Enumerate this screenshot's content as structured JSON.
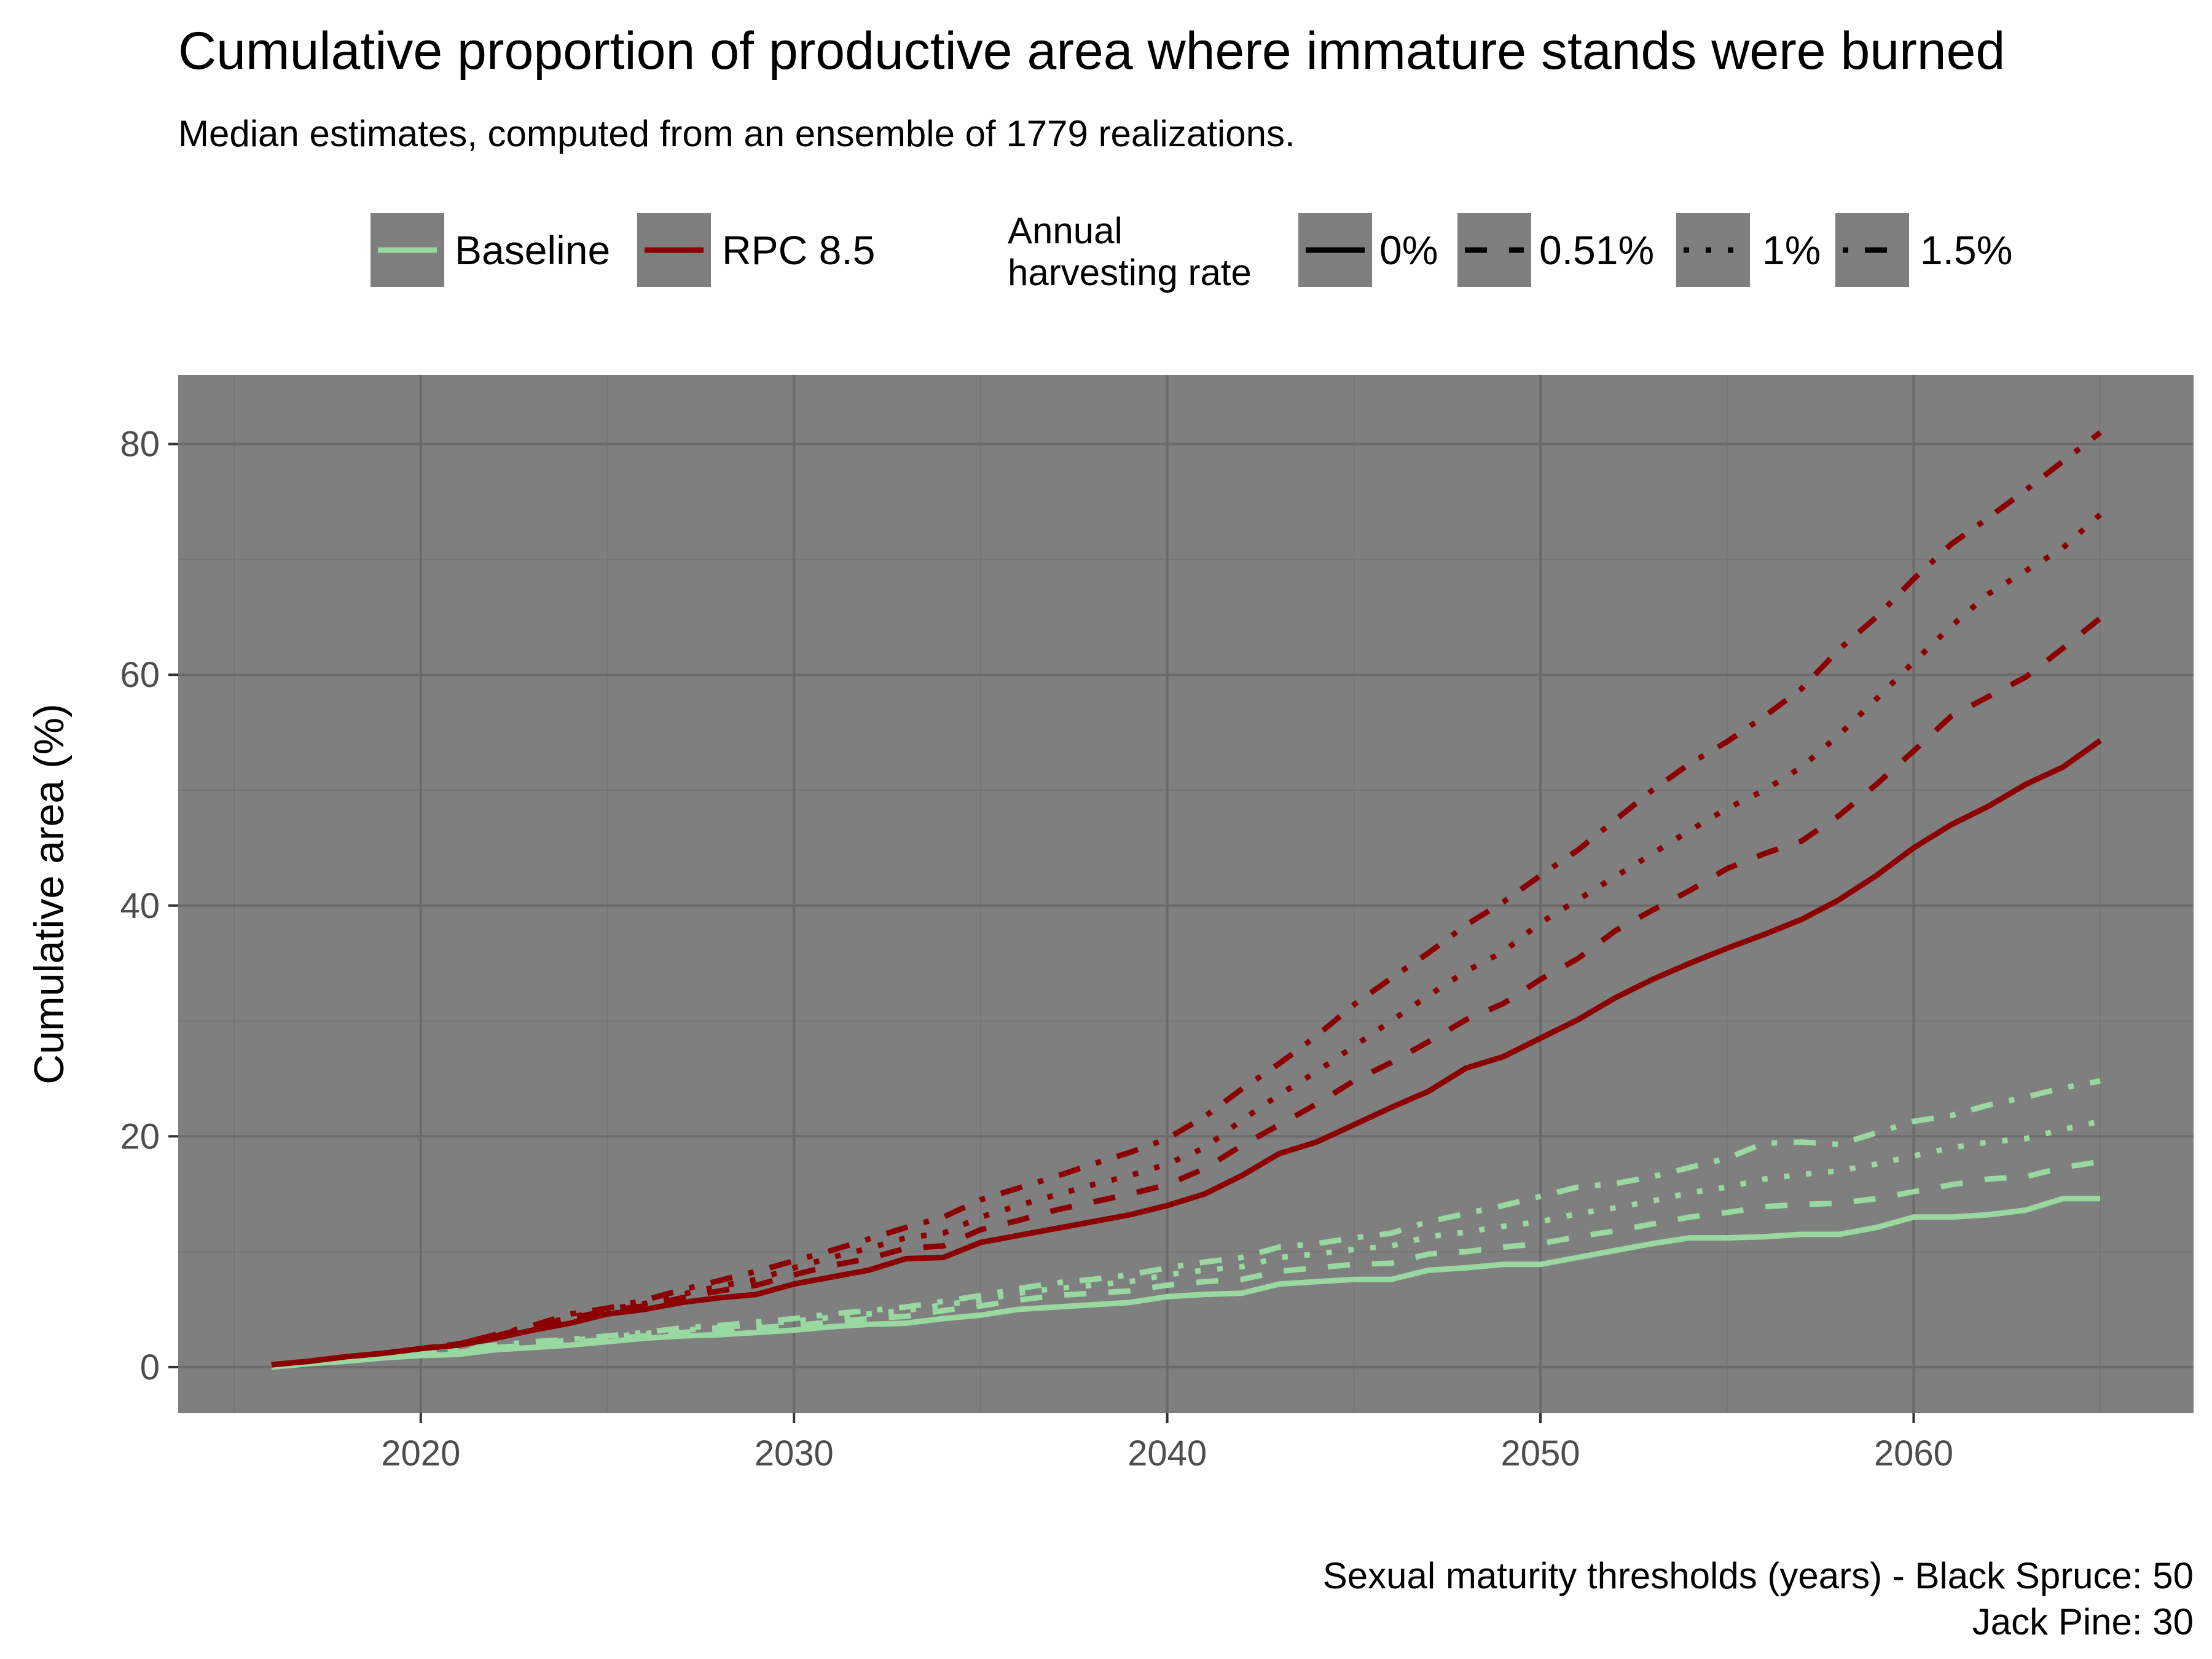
{
  "title": "Cumulative proportion of productive area where immature stands were burned",
  "subtitle": "Median estimates, computed from an ensemble of 1779 realizations.",
  "caption_line1": "Sexual maturity thresholds (years) - Black Spruce: 50",
  "caption_line2": "Jack Pine: 30",
  "legend": {
    "scenarios": [
      {
        "label": "Baseline",
        "color": "#99d8a0"
      },
      {
        "label": "RPC 8.5",
        "color": "#8b0000"
      }
    ],
    "rate_title_line1": "Annual",
    "rate_title_line2": "harvesting rate",
    "rates": [
      {
        "label": "0%",
        "dash": "solid"
      },
      {
        "label": "0.51%",
        "dash": "dashed"
      },
      {
        "label": "1%",
        "dash": "dotted"
      },
      {
        "label": "1.5%",
        "dash": "dotdash"
      }
    ]
  },
  "colors": {
    "panel_bg": "#7f7f7f",
    "grid_major": "#6b6b6b",
    "grid_minor": "#767676",
    "baseline": "#99d8a0",
    "rpc": "#8b0000",
    "legend_key_bg": "#7f7f7f"
  },
  "chart_data": {
    "type": "line",
    "title": "Cumulative proportion of productive area where immature stands were burned",
    "subtitle": "Median estimates, computed from an ensemble of 1779 realizations.",
    "xlabel": "",
    "ylabel": "Cumulative area (%)",
    "xlim": [
      2013.5,
      2067.5
    ],
    "ylim": [
      -4,
      86
    ],
    "x_ticks": [
      2020,
      2030,
      2040,
      2050,
      2060
    ],
    "y_ticks": [
      0,
      20,
      40,
      60,
      80
    ],
    "x_tick_labels": [
      "2020",
      "2030",
      "2040",
      "2050",
      "2060"
    ],
    "y_tick_labels": [
      "0",
      "20",
      "40",
      "60",
      "80"
    ],
    "grid": true,
    "legend_position": "top",
    "x": [
      2016,
      2017,
      2018,
      2019,
      2020,
      2021,
      2022,
      2023,
      2024,
      2025,
      2026,
      2027,
      2028,
      2029,
      2030,
      2031,
      2032,
      2033,
      2034,
      2035,
      2036,
      2037,
      2038,
      2039,
      2040,
      2041,
      2042,
      2043,
      2044,
      2045,
      2046,
      2047,
      2048,
      2049,
      2050,
      2051,
      2052,
      2053,
      2054,
      2055,
      2056,
      2057,
      2058,
      2059,
      2060,
      2061,
      2062,
      2063,
      2064,
      2065
    ],
    "series": [
      {
        "name": "RPC 8.5",
        "rate": "0%",
        "scenario": "RPC 8.5",
        "values": [
          0.2,
          0.5,
          0.9,
          1.2,
          1.6,
          1.9,
          2.5,
          3.2,
          3.8,
          4.6,
          5.0,
          5.6,
          6.0,
          6.3,
          7.2,
          7.8,
          8.4,
          9.4,
          9.5,
          10.8,
          11.4,
          12.0,
          12.6,
          13.2,
          14.0,
          15.0,
          16.6,
          18.5,
          19.5,
          21.0,
          22.5,
          23.9,
          25.9,
          26.9,
          28.5,
          30.1,
          32.0,
          33.6,
          35.0,
          36.3,
          37.5,
          38.8,
          40.5,
          42.6,
          45.0,
          47.0,
          48.6,
          50.5,
          52.0,
          54.3
        ]
      },
      {
        "name": "RPC 8.5",
        "rate": "0.51%",
        "scenario": "RPC 8.5",
        "values": [
          0.2,
          0.5,
          0.9,
          1.2,
          1.6,
          2.0,
          2.7,
          3.5,
          4.2,
          4.9,
          5.3,
          6.0,
          6.6,
          7.1,
          8.0,
          8.8,
          9.4,
          10.3,
          10.5,
          11.9,
          12.7,
          13.6,
          14.3,
          15.0,
          15.8,
          17.2,
          19.2,
          21.0,
          22.8,
          24.8,
          26.4,
          28.2,
          30.1,
          31.5,
          33.6,
          35.4,
          37.8,
          39.6,
          41.3,
          43.2,
          44.5,
          45.6,
          47.8,
          50.5,
          53.4,
          56.4,
          58.1,
          59.8,
          62.3,
          64.9
        ]
      },
      {
        "name": "RPC 8.5",
        "rate": "1%",
        "scenario": "RPC 8.5",
        "values": [
          0.2,
          0.5,
          0.9,
          1.2,
          1.6,
          2.0,
          2.8,
          3.5,
          4.3,
          5.0,
          5.5,
          6.3,
          7.0,
          7.6,
          8.6,
          9.5,
          10.3,
          11.2,
          11.6,
          13.0,
          14.0,
          14.9,
          15.8,
          16.6,
          17.6,
          19.0,
          21.4,
          23.6,
          25.6,
          27.8,
          30.0,
          32.2,
          34.3,
          36.0,
          38.5,
          40.5,
          42.5,
          44.5,
          46.5,
          48.4,
          50.0,
          52.0,
          54.8,
          57.9,
          61.1,
          64.2,
          67.0,
          69.0,
          71.0,
          73.9
        ]
      },
      {
        "name": "RPC 8.5",
        "rate": "1.5%",
        "scenario": "RPC 8.5",
        "values": [
          0.2,
          0.5,
          0.9,
          1.2,
          1.6,
          2.0,
          2.8,
          3.6,
          4.6,
          5.1,
          5.8,
          6.7,
          7.5,
          8.3,
          9.2,
          10.1,
          11.1,
          12.1,
          13.0,
          14.5,
          15.5,
          16.5,
          17.6,
          18.6,
          19.8,
          21.7,
          24.1,
          26.3,
          28.7,
          31.4,
          33.7,
          35.9,
          38.3,
          40.3,
          42.6,
          44.8,
          47.4,
          50.0,
          52.3,
          54.2,
          56.4,
          58.8,
          62.2,
          65.0,
          68.3,
          71.3,
          73.6,
          76.0,
          78.5,
          81.0
        ]
      },
      {
        "name": "Baseline",
        "rate": "0%",
        "scenario": "Baseline",
        "values": [
          0.0,
          0.3,
          0.5,
          0.8,
          1.0,
          1.1,
          1.5,
          1.7,
          1.9,
          2.2,
          2.5,
          2.7,
          2.8,
          3.0,
          3.2,
          3.5,
          3.7,
          3.8,
          4.2,
          4.5,
          5.0,
          5.2,
          5.4,
          5.6,
          6.1,
          6.3,
          6.4,
          7.2,
          7.4,
          7.6,
          7.6,
          8.4,
          8.6,
          8.9,
          8.9,
          9.5,
          10.1,
          10.7,
          11.2,
          11.2,
          11.3,
          11.5,
          11.5,
          12.1,
          13.0,
          13.0,
          13.2,
          13.6,
          14.6,
          14.6
        ]
      },
      {
        "name": "Baseline",
        "rate": "0.51%",
        "scenario": "Baseline",
        "values": [
          0.0,
          0.3,
          0.6,
          0.9,
          1.1,
          1.3,
          1.7,
          1.9,
          2.1,
          2.4,
          2.7,
          3.0,
          3.2,
          3.4,
          3.6,
          3.9,
          4.2,
          4.4,
          4.9,
          5.3,
          5.8,
          6.2,
          6.4,
          6.6,
          7.1,
          7.4,
          7.6,
          8.3,
          8.6,
          8.9,
          9.0,
          9.8,
          10.0,
          10.4,
          10.7,
          11.3,
          11.8,
          12.4,
          13.0,
          13.4,
          13.9,
          14.1,
          14.2,
          14.6,
          15.2,
          15.8,
          16.3,
          16.5,
          17.3,
          17.8
        ]
      },
      {
        "name": "Baseline",
        "rate": "1%",
        "scenario": "Baseline",
        "values": [
          0.0,
          0.3,
          0.6,
          0.9,
          1.1,
          1.4,
          1.8,
          2.1,
          2.3,
          2.6,
          2.9,
          3.2,
          3.4,
          3.7,
          4.0,
          4.3,
          4.6,
          4.9,
          5.4,
          5.8,
          6.4,
          6.8,
          7.1,
          7.4,
          8.0,
          8.4,
          8.7,
          9.5,
          9.8,
          10.2,
          10.5,
          11.3,
          11.7,
          12.2,
          12.6,
          13.3,
          13.8,
          14.4,
          15.1,
          15.6,
          16.3,
          16.7,
          17.0,
          17.6,
          18.3,
          19.0,
          19.5,
          19.8,
          20.6,
          21.3
        ]
      },
      {
        "name": "Baseline",
        "rate": "1.5%",
        "scenario": "Baseline",
        "values": [
          0.0,
          0.3,
          0.6,
          0.9,
          1.2,
          1.5,
          1.9,
          2.2,
          2.4,
          2.7,
          3.0,
          3.4,
          3.6,
          3.9,
          4.2,
          4.6,
          4.9,
          5.2,
          5.7,
          6.2,
          6.8,
          7.3,
          7.6,
          8.0,
          8.6,
          9.1,
          9.5,
          10.4,
          10.7,
          11.2,
          11.6,
          12.6,
          13.3,
          14.0,
          14.8,
          15.6,
          15.9,
          16.5,
          17.3,
          18.1,
          19.4,
          19.5,
          19.3,
          20.3,
          21.3,
          21.8,
          22.7,
          23.4,
          24.2,
          24.8
        ]
      }
    ]
  }
}
